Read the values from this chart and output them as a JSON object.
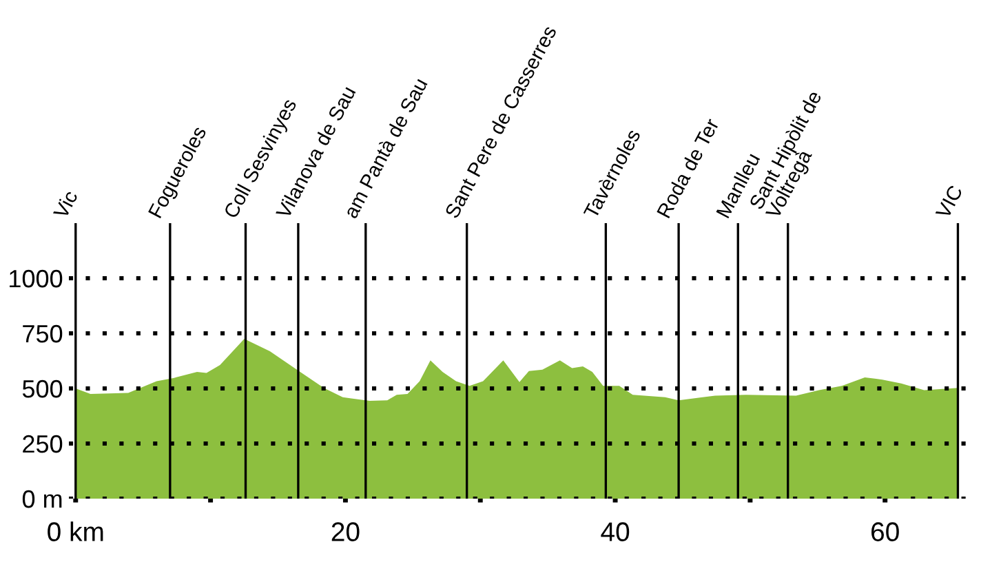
{
  "chart_data": {
    "type": "area",
    "color": "#8dbf3f",
    "x": [
      0,
      1.1,
      3.9,
      6.0,
      7.3,
      9.0,
      9.7,
      10.7,
      12.5,
      14.4,
      16.4,
      18.4,
      19.8,
      21.8,
      23.1,
      23.8,
      24.6,
      25.5,
      26.3,
      27.2,
      28.2,
      29.2,
      30.2,
      31.7,
      32.9,
      33.6,
      34.6,
      35.9,
      36.8,
      37.6,
      38.3,
      39.1,
      40.3,
      41.3,
      43.7,
      44.7,
      47.4,
      49.7,
      53.4,
      55.1,
      56.8,
      58.5,
      59.8,
      61.2,
      62.9,
      65.4
    ],
    "values": [
      500,
      475,
      480,
      533,
      548,
      575,
      570,
      606,
      725,
      669,
      585,
      502,
      460,
      444,
      446,
      471,
      475,
      533,
      627,
      575,
      533,
      512,
      533,
      627,
      529,
      579,
      585,
      627,
      592,
      600,
      575,
      512,
      512,
      471,
      460,
      446,
      467,
      471,
      467,
      492,
      512,
      550,
      540,
      523,
      492,
      502
    ],
    "xlim": [
      -0.5,
      66.5
    ],
    "ylim": [
      0,
      1250
    ],
    "xticks": [
      {
        "value": 0,
        "label": "0 km"
      },
      {
        "value": 10,
        "label": null
      },
      20,
      {
        "value": 30,
        "label": null
      },
      40,
      {
        "value": 50,
        "label": null
      },
      60
    ],
    "yticks": [
      {
        "value": 0,
        "label": "0 m"
      },
      250,
      500,
      750,
      1000
    ],
    "grid": "y",
    "line_style": "dotted",
    "ref_lines": [
      {
        "axis": "x",
        "value": 0,
        "label": "Vic"
      },
      {
        "axis": "x",
        "value": 7.0,
        "label": "Fogueroles"
      },
      {
        "axis": "x",
        "value": 12.6,
        "label": "Coll Sesvinyes"
      },
      {
        "axis": "x",
        "value": 16.5,
        "label": "Vilanova de Sau"
      },
      {
        "axis": "x",
        "value": 21.5,
        "label": "am Pantà de Sau"
      },
      {
        "axis": "x",
        "value": 29.0,
        "label": "Sant Pere de Casserres"
      },
      {
        "axis": "x",
        "value": 39.3,
        "label": "Tavèrnoles"
      },
      {
        "axis": "x",
        "value": 44.7,
        "label": "Roda de Ter"
      },
      {
        "axis": "x",
        "value": 49.1,
        "label": "Manlleu"
      },
      {
        "axis": "x",
        "value": 52.8,
        "label": "Sant Hipòlit de\nVoltregà"
      },
      {
        "axis": "x",
        "value": 65.4,
        "label": "VIC"
      }
    ]
  }
}
